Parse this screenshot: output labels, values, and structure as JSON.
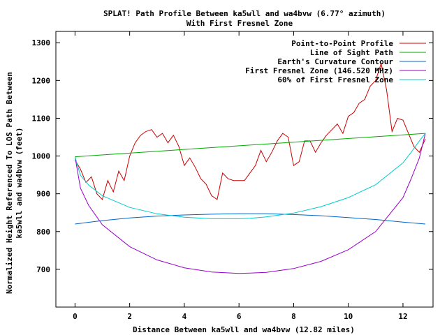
{
  "chart_data": {
    "type": "line",
    "title": "SPLAT! Path Profile Between ka5wll and wa4bvw (6.77° azimuth)",
    "subtitle": "With First Fresnel Zone",
    "xlabel": "Distance Between ka5wll and wa4bvw (12.82 miles)",
    "ylabel_line1": "Normalized Height Referenced To LOS Path Between",
    "ylabel_line2": "ka5wll and wa4bvw (feet)",
    "xlim": [
      -0.7,
      13.1
    ],
    "ylim": [
      600,
      1330
    ],
    "x_ticks": [
      0,
      2,
      4,
      6,
      8,
      10,
      12
    ],
    "y_ticks": [
      700,
      800,
      900,
      1000,
      1100,
      1200,
      1300
    ],
    "grid": false,
    "legend_position": "top-right",
    "series": [
      {
        "name": "Point-to-Point Profile",
        "color": "#cc0000",
        "x": [
          0,
          0.2,
          0.4,
          0.6,
          0.8,
          1.0,
          1.2,
          1.4,
          1.6,
          1.8,
          2.0,
          2.2,
          2.4,
          2.6,
          2.8,
          3.0,
          3.2,
          3.4,
          3.6,
          3.8,
          4.0,
          4.2,
          4.4,
          4.6,
          4.8,
          5.0,
          5.2,
          5.4,
          5.6,
          5.8,
          6.0,
          6.2,
          6.4,
          6.6,
          6.8,
          7.0,
          7.2,
          7.4,
          7.6,
          7.8,
          8.0,
          8.2,
          8.4,
          8.6,
          8.8,
          9.0,
          9.2,
          9.4,
          9.6,
          9.8,
          10.0,
          10.2,
          10.4,
          10.6,
          10.8,
          11.0,
          11.2,
          11.4,
          11.6,
          11.8,
          12.0,
          12.2,
          12.4,
          12.6,
          12.82
        ],
        "y": [
          990,
          965,
          930,
          945,
          900,
          885,
          935,
          905,
          960,
          935,
          1000,
          1035,
          1055,
          1065,
          1070,
          1050,
          1060,
          1035,
          1055,
          1025,
          975,
          995,
          970,
          940,
          925,
          895,
          885,
          955,
          940,
          935,
          935,
          935,
          955,
          975,
          1015,
          985,
          1010,
          1040,
          1060,
          1050,
          975,
          985,
          1040,
          1040,
          1010,
          1035,
          1055,
          1070,
          1085,
          1060,
          1105,
          1115,
          1140,
          1150,
          1185,
          1200,
          1245,
          1175,
          1065,
          1100,
          1095,
          1060,
          1025,
          1010,
          1045
        ]
      },
      {
        "name": "Line of Sight Path",
        "color": "#00aa00",
        "x": [
          0,
          12.82
        ],
        "y": [
          998,
          1060
        ]
      },
      {
        "name": "Earth's Curvature Contour",
        "color": "#0066cc",
        "x": [
          0,
          1,
          2,
          3,
          4,
          5,
          6,
          6.41,
          7,
          8,
          9,
          10,
          11,
          12,
          12.82
        ],
        "y": [
          820,
          829,
          836,
          841,
          844,
          846,
          847,
          847,
          847,
          845,
          842,
          837,
          832,
          825,
          820
        ]
      },
      {
        "name": "First Fresnel Zone (146.520 MHz)",
        "color": "#9900cc",
        "x": [
          0,
          0.2,
          0.5,
          1,
          2,
          3,
          4,
          5,
          6,
          6.41,
          7,
          8,
          9,
          10,
          11,
          12,
          12.3,
          12.6,
          12.82
        ],
        "y": [
          998,
          915,
          869,
          818,
          760,
          725,
          704,
          693,
          689,
          690,
          692,
          702,
          721,
          752,
          800,
          890,
          940,
          995,
          1060
        ]
      },
      {
        "name": "60% of First Fresnel Zone",
        "color": "#00cccc",
        "x": [
          0,
          0.2,
          0.5,
          1,
          2,
          3,
          4,
          5,
          6,
          6.41,
          7,
          8,
          9,
          10,
          11,
          12,
          12.3,
          12.6,
          12.82
        ],
        "y": [
          998,
          949,
          923,
          895,
          864,
          847,
          838,
          834,
          834,
          835,
          839,
          849,
          866,
          890,
          924,
          982,
          1010,
          1040,
          1060
        ]
      }
    ]
  }
}
